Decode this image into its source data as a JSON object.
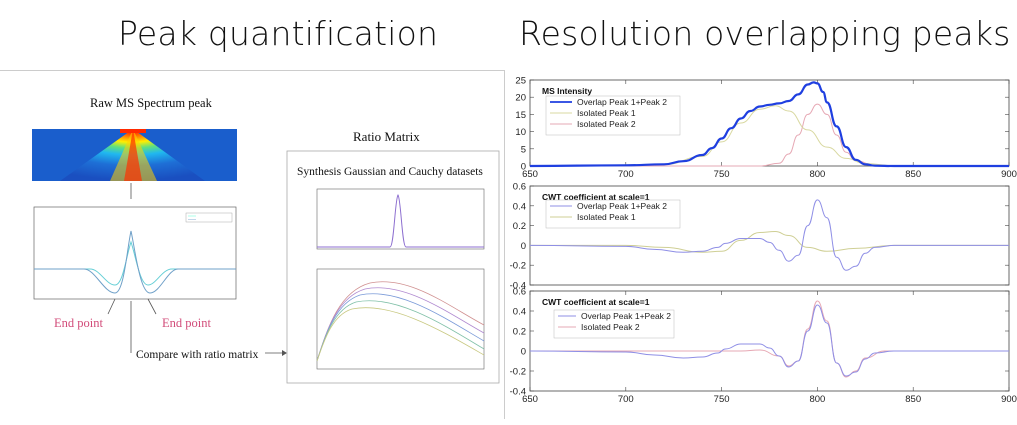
{
  "headings": {
    "left": "Peak quantification",
    "right": "Resolution overlapping peaks"
  },
  "left_figure": {
    "raw_label": "Raw MS Spectrum peak",
    "ratio_title": "Ratio Matrix",
    "synthesis_label": "Synthesis Gaussian and Cauchy datasets",
    "end_point_left": "End point",
    "end_point_right": "End point",
    "compare_label": "Compare with ratio matrix",
    "colors": {
      "end_point": "#d24c7a",
      "heatmap_peak": "#ff2000",
      "background": "#1e6fd6"
    }
  },
  "chart_data": [
    {
      "type": "line",
      "title": "MS Intensity",
      "xlim": [
        650,
        900
      ],
      "ylim": [
        0,
        25
      ],
      "xticks": [
        650,
        700,
        750,
        800,
        850,
        900
      ],
      "yticks": [
        0,
        5,
        10,
        15,
        20,
        25
      ],
      "legend_position": "top-left",
      "grid": false,
      "series": [
        {
          "name": "Overlap Peak 1+Peak 2",
          "color": "#1f3fe0",
          "width": 2.2,
          "x": [
            650,
            700,
            720,
            730,
            740,
            745,
            750,
            755,
            760,
            765,
            770,
            775,
            780,
            785,
            790,
            795,
            798,
            800,
            803,
            805,
            810,
            815,
            820,
            825,
            830,
            840,
            850,
            900
          ],
          "y": [
            0,
            0.2,
            0.5,
            1.4,
            3.2,
            5.2,
            8.0,
            11.0,
            13.8,
            16.0,
            17.3,
            17.8,
            18.2,
            18.9,
            20.8,
            23.7,
            24.3,
            24.0,
            21.5,
            18.5,
            11.5,
            5.5,
            1.8,
            0.5,
            0.1,
            0,
            0,
            0
          ]
        },
        {
          "name": "Isolated Peak 1",
          "color": "#d8d8a0",
          "width": 1,
          "x": [
            650,
            720,
            740,
            750,
            760,
            770,
            778,
            785,
            795,
            805,
            815,
            825,
            840,
            900
          ],
          "y": [
            0,
            0.4,
            2.8,
            7.0,
            12.5,
            16.5,
            17.5,
            16.0,
            10.5,
            5.5,
            2.2,
            0.7,
            0.1,
            0
          ]
        },
        {
          "name": "Isolated Peak 2",
          "color": "#e6a8b4",
          "width": 1,
          "x": [
            650,
            770,
            780,
            785,
            790,
            795,
            800,
            805,
            810,
            815,
            820,
            830,
            850,
            900
          ],
          "y": [
            0,
            0,
            0.8,
            3.5,
            9.0,
            15.0,
            18.0,
            15.0,
            9.0,
            4.0,
            1.5,
            0.2,
            0,
            0
          ]
        }
      ]
    },
    {
      "type": "line",
      "title": "CWT coefficient at scale=1",
      "xlim": [
        650,
        900
      ],
      "ylim": [
        -0.4,
        0.6
      ],
      "yticks": [
        -0.4,
        -0.2,
        0,
        0.2,
        0.4,
        0.6
      ],
      "legend_position": "top-left",
      "grid": false,
      "series": [
        {
          "name": "Overlap Peak 1+Peak 2",
          "color": "#8f8fe6",
          "width": 1,
          "x": [
            650,
            700,
            715,
            730,
            740,
            748,
            752,
            760,
            770,
            775,
            780,
            785,
            790,
            795,
            800,
            805,
            810,
            815,
            820,
            825,
            830,
            840,
            900
          ],
          "y": [
            0,
            -0.01,
            -0.04,
            -0.07,
            -0.06,
            -0.02,
            0.02,
            0.07,
            0.07,
            0.03,
            -0.05,
            -0.16,
            -0.1,
            0.2,
            0.46,
            0.28,
            -0.12,
            -0.25,
            -0.21,
            -0.08,
            -0.02,
            0,
            0
          ]
        },
        {
          "name": "Isolated Peak 1",
          "color": "#cfcf95",
          "width": 1,
          "x": [
            650,
            700,
            720,
            740,
            750,
            760,
            770,
            778,
            785,
            795,
            805,
            820,
            840,
            900
          ],
          "y": [
            0,
            0,
            -0.02,
            -0.07,
            -0.06,
            0.05,
            0.13,
            0.14,
            0.1,
            -0.02,
            -0.06,
            -0.03,
            0,
            0
          ]
        }
      ]
    },
    {
      "type": "line",
      "title": "CWT coefficient at scale=1",
      "xlim": [
        650,
        900
      ],
      "ylim": [
        -0.4,
        0.6
      ],
      "xticks": [
        650,
        700,
        750,
        800,
        850,
        900
      ],
      "yticks": [
        -0.4,
        -0.2,
        0,
        0.2,
        0.4,
        0.6
      ],
      "legend_position": "top-left",
      "grid": false,
      "series": [
        {
          "name": "Overlap Peak 1+Peak 2",
          "color": "#8f8fe6",
          "width": 1,
          "x": [
            650,
            700,
            715,
            730,
            740,
            748,
            752,
            760,
            770,
            775,
            780,
            785,
            790,
            795,
            800,
            805,
            810,
            815,
            820,
            825,
            830,
            840,
            900
          ],
          "y": [
            0,
            -0.01,
            -0.04,
            -0.07,
            -0.06,
            -0.02,
            0.02,
            0.07,
            0.07,
            0.03,
            -0.05,
            -0.16,
            -0.1,
            0.2,
            0.46,
            0.28,
            -0.12,
            -0.25,
            -0.21,
            -0.08,
            -0.02,
            0,
            0
          ]
        },
        {
          "name": "Isolated Peak 2",
          "color": "#e6a8b4",
          "width": 1,
          "x": [
            650,
            760,
            770,
            780,
            785,
            790,
            795,
            800,
            805,
            810,
            815,
            820,
            825,
            835,
            900
          ],
          "y": [
            0,
            0,
            0.01,
            -0.05,
            -0.15,
            -0.1,
            0.22,
            0.5,
            0.3,
            -0.12,
            -0.26,
            -0.2,
            -0.07,
            0,
            0
          ]
        }
      ]
    }
  ]
}
